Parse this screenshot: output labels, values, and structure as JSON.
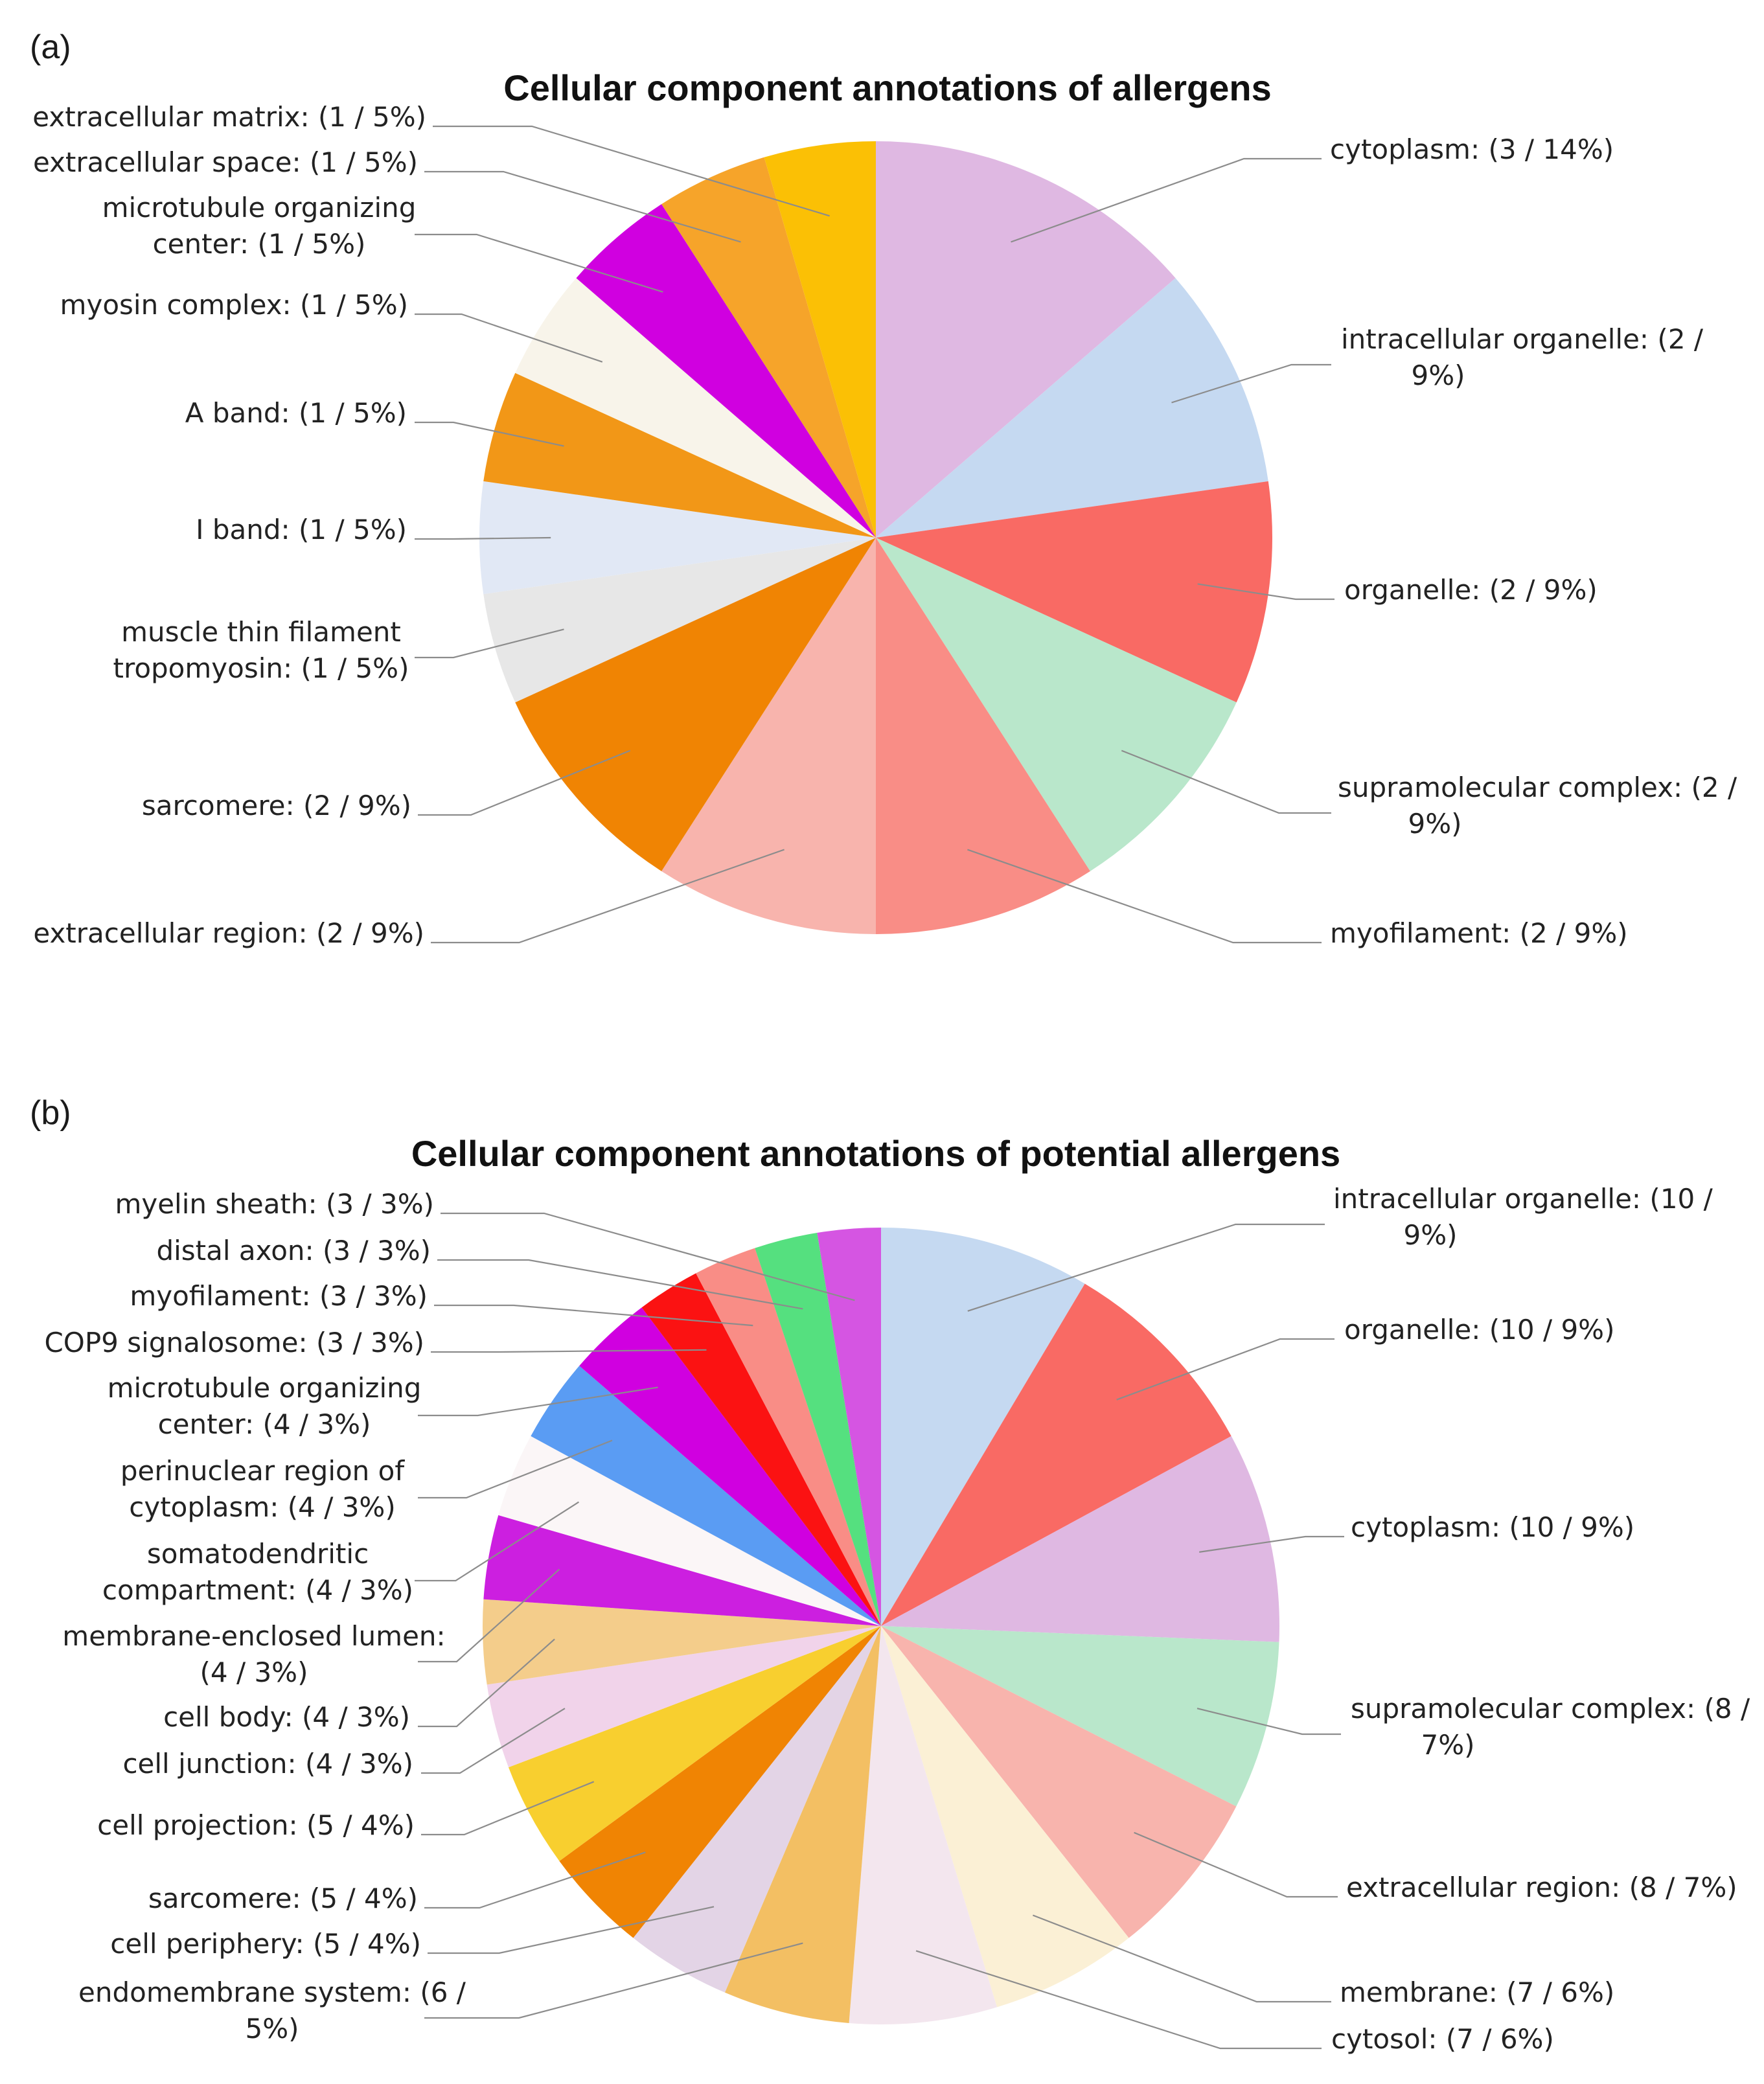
{
  "chart_data": [
    {
      "type": "pie",
      "panel": "(a)",
      "title": "Cellular component annotations of allergens",
      "slices": [
        {
          "name": "cytoplasm",
          "count": 3,
          "percent": 14,
          "color": "#dfb8e2",
          "label_lines": [
            "cytoplasm: (3 / 14%)"
          ]
        },
        {
          "name": "intracellular organelle",
          "count": 2,
          "percent": 9,
          "color": "#c5d9f1",
          "label_lines": [
            "intracellular organelle: (2 /",
            "9%)"
          ]
        },
        {
          "name": "organelle",
          "count": 2,
          "percent": 9,
          "color": "#f96a64",
          "label_lines": [
            "organelle: (2 / 9%)"
          ]
        },
        {
          "name": "supramolecular complex",
          "count": 2,
          "percent": 9,
          "color": "#b9e7cb",
          "label_lines": [
            "supramolecular complex: (2 /",
            "9%)"
          ]
        },
        {
          "name": "myofilament",
          "count": 2,
          "percent": 9,
          "color": "#f98d86",
          "label_lines": [
            "myofilament: (2 / 9%)"
          ]
        },
        {
          "name": "extracellular region",
          "count": 2,
          "percent": 9,
          "color": "#f8b4ad",
          "label_lines": [
            "extracellular region: (2 / 9%)"
          ]
        },
        {
          "name": "sarcomere",
          "count": 2,
          "percent": 9,
          "color": "#f08403",
          "label_lines": [
            "sarcomere: (2 / 9%)"
          ]
        },
        {
          "name": "muscle thin filament tropomyosin",
          "count": 1,
          "percent": 5,
          "color": "#e7e7e7",
          "label_lines": [
            "muscle thin filament",
            "tropomyosin: (1 / 5%)"
          ]
        },
        {
          "name": "I band",
          "count": 1,
          "percent": 5,
          "color": "#e1e8f5",
          "label_lines": [
            "I band: (1 / 5%)"
          ]
        },
        {
          "name": "A band",
          "count": 1,
          "percent": 5,
          "color": "#f29717",
          "label_lines": [
            "A band: (1 / 5%)"
          ]
        },
        {
          "name": "myosin complex",
          "count": 1,
          "percent": 5,
          "color": "#f8f4ea",
          "label_lines": [
            "myosin complex: (1 / 5%)"
          ]
        },
        {
          "name": "microtubule organizing center",
          "count": 1,
          "percent": 5,
          "color": "#d000e0",
          "label_lines": [
            "microtubule organizing",
            "center: (1 / 5%)"
          ]
        },
        {
          "name": "extracellular space",
          "count": 1,
          "percent": 5,
          "color": "#f6a42a",
          "label_lines": [
            "extracellular space: (1 / 5%)"
          ]
        },
        {
          "name": "extracellular matrix",
          "count": 1,
          "percent": 5,
          "color": "#fbc005",
          "label_lines": [
            "extracellular matrix: (1 / 5%)"
          ]
        }
      ]
    },
    {
      "type": "pie",
      "panel": "(b)",
      "title": "Cellular component annotations of potential allergens",
      "slices": [
        {
          "name": "intracellular organelle",
          "count": 10,
          "percent": 9,
          "color": "#c5d9f1",
          "label_lines": [
            "intracellular organelle: (10 /",
            "9%)"
          ]
        },
        {
          "name": "organelle",
          "count": 10,
          "percent": 9,
          "color": "#f96a64",
          "label_lines": [
            "organelle: (10 / 9%)"
          ]
        },
        {
          "name": "cytoplasm",
          "count": 10,
          "percent": 9,
          "color": "#dfb8e2",
          "label_lines": [
            "cytoplasm: (10 / 9%)"
          ]
        },
        {
          "name": "supramolecular complex",
          "count": 8,
          "percent": 7,
          "color": "#b9e7cb",
          "label_lines": [
            "supramolecular complex: (8 /",
            "7%)"
          ]
        },
        {
          "name": "extracellular region",
          "count": 8,
          "percent": 7,
          "color": "#f8b4ad",
          "label_lines": [
            "extracellular region: (8 / 7%)"
          ]
        },
        {
          "name": "membrane",
          "count": 7,
          "percent": 6,
          "color": "#fbf0d5",
          "label_lines": [
            "membrane: (7 / 6%)"
          ]
        },
        {
          "name": "cytosol",
          "count": 7,
          "percent": 6,
          "color": "#f3e6ee",
          "label_lines": [
            "cytosol: (7 / 6%)"
          ]
        },
        {
          "name": "endomembrane system",
          "count": 6,
          "percent": 5,
          "color": "#f3bf63",
          "label_lines": [
            "endomembrane system: (6 /",
            "5%)"
          ]
        },
        {
          "name": "cell periphery",
          "count": 5,
          "percent": 4,
          "color": "#e3d4e6",
          "label_lines": [
            "cell periphery: (5 / 4%)"
          ]
        },
        {
          "name": "sarcomere",
          "count": 5,
          "percent": 4,
          "color": "#f08403",
          "label_lines": [
            "sarcomere: (5 / 4%)"
          ]
        },
        {
          "name": "cell projection",
          "count": 5,
          "percent": 4,
          "color": "#f8cf2f",
          "label_lines": [
            "cell projection: (5 / 4%)"
          ]
        },
        {
          "name": "cell junction",
          "count": 4,
          "percent": 3,
          "color": "#f1d3ea",
          "label_lines": [
            "cell junction: (4 / 3%)"
          ]
        },
        {
          "name": "cell body",
          "count": 4,
          "percent": 3,
          "color": "#f4cd8b",
          "label_lines": [
            "cell body: (4 / 3%)"
          ]
        },
        {
          "name": "membrane-enclosed lumen",
          "count": 4,
          "percent": 3,
          "color": "#cc1fe0",
          "label_lines": [
            "membrane-enclosed lumen:",
            "(4 / 3%)"
          ]
        },
        {
          "name": "somatodendritic compartment",
          "count": 4,
          "percent": 3,
          "color": "#fbf6f7",
          "label_lines": [
            "somatodendritic",
            "compartment: (4 / 3%)"
          ]
        },
        {
          "name": "perinuclear region of cytoplasm",
          "count": 4,
          "percent": 3,
          "color": "#5a9cf3",
          "label_lines": [
            "perinuclear region of",
            "cytoplasm: (4 / 3%)"
          ]
        },
        {
          "name": "microtubule organizing center",
          "count": 4,
          "percent": 3,
          "color": "#d000e0",
          "label_lines": [
            "microtubule organizing",
            "center: (4 / 3%)"
          ]
        },
        {
          "name": "COP9 signalosome",
          "count": 3,
          "percent": 3,
          "color": "#fb1212",
          "label_lines": [
            "COP9 signalosome: (3 / 3%)"
          ]
        },
        {
          "name": "myofilament",
          "count": 3,
          "percent": 3,
          "color": "#f98d86",
          "label_lines": [
            "myofilament: (3 / 3%)"
          ]
        },
        {
          "name": "distal axon",
          "count": 3,
          "percent": 3,
          "color": "#55e07f",
          "label_lines": [
            "distal axon: (3 / 3%)"
          ]
        },
        {
          "name": "myelin sheath",
          "count": 3,
          "percent": 3,
          "color": "#d555e2",
          "label_lines": [
            "myelin sheath: (3 / 3%)"
          ]
        }
      ]
    }
  ]
}
